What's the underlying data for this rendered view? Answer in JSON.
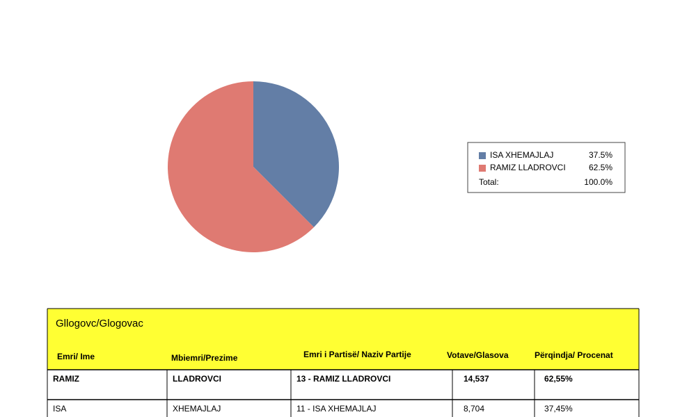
{
  "chart_data": {
    "type": "pie",
    "categories": [
      "ISA XHEMAJLAJ",
      "RAMIZ LLADROVCI"
    ],
    "values": [
      37.5,
      62.5
    ],
    "value_labels": [
      "37.5%",
      "62.5%"
    ],
    "colors": [
      "#637ea6",
      "#df7a72"
    ],
    "total_label": "Total:",
    "total_value_label": "100.0%"
  },
  "table": {
    "title": "Gllogovc/Glogovac",
    "header": [
      "Emri/ Ime",
      "Mbiemri/Prezime",
      "Emri i Partisë/ Naziv Partije",
      "Votave/Glasova",
      "Përqindja/ Procenat"
    ],
    "rows": [
      [
        "RAMIZ",
        "LLADROVCI",
        "13 - RAMIZ LLADROVCI",
        "14,537",
        "62,55%"
      ],
      [
        "ISA",
        "XHEMAJLAJ",
        "11 - ISA XHEMAJLAJ",
        "8,704",
        "37,45%"
      ]
    ]
  }
}
